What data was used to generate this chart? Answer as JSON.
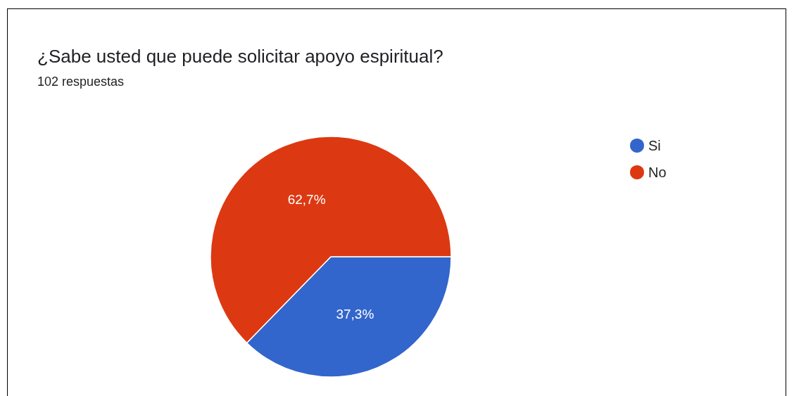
{
  "chart_data": {
    "type": "pie",
    "title": "¿Sabe usted que puede solicitar apoyo espiritual?",
    "subtitle": "102 respuestas",
    "categories": [
      "Si",
      "No"
    ],
    "values": [
      37.3,
      62.7
    ],
    "colors": [
      "#3366cc",
      "#dc3912"
    ],
    "value_labels": [
      "37,3%",
      "62,7%"
    ],
    "legend": "top right"
  }
}
